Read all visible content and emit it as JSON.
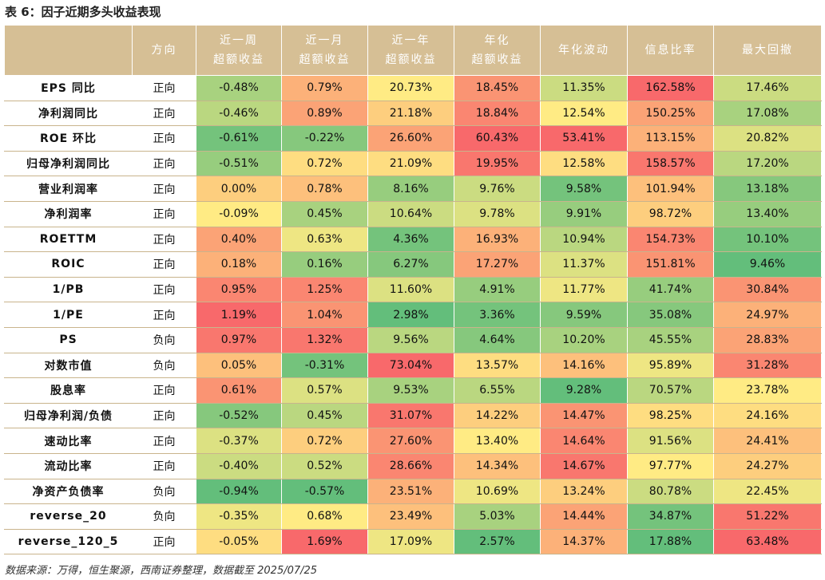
{
  "header": {
    "title": "表 6：因子近期多头收益表现"
  },
  "table": {
    "columns": [
      "方向",
      [
        "近一周",
        "超额收益"
      ],
      [
        "近一月",
        "超额收益"
      ],
      [
        "近一年",
        "超额收益"
      ],
      [
        "年化",
        "超额收益"
      ],
      "年化波动",
      "信息比率",
      "最大回撤"
    ],
    "rows": [
      [
        "EPS 同比",
        "正向",
        "-0.48%",
        "0.79%",
        "20.73%",
        "18.45%",
        "11.35%",
        "162.58%",
        "17.46%"
      ],
      [
        "净利润同比",
        "正向",
        "-0.46%",
        "0.89%",
        "21.18%",
        "18.84%",
        "12.54%",
        "150.25%",
        "17.08%"
      ],
      [
        "ROE 环比",
        "正向",
        "-0.61%",
        "-0.22%",
        "26.60%",
        "60.43%",
        "53.41%",
        "113.15%",
        "20.82%"
      ],
      [
        "归母净利润同比",
        "正向",
        "-0.51%",
        "0.72%",
        "21.09%",
        "19.95%",
        "12.58%",
        "158.57%",
        "17.20%"
      ],
      [
        "营业利润率",
        "正向",
        "0.00%",
        "0.78%",
        "8.16%",
        "9.76%",
        "9.58%",
        "101.94%",
        "13.18%"
      ],
      [
        "净利润率",
        "正向",
        "-0.09%",
        "0.45%",
        "10.64%",
        "9.78%",
        "9.91%",
        "98.72%",
        "13.40%"
      ],
      [
        "ROETTM",
        "正向",
        "0.40%",
        "0.63%",
        "4.36%",
        "16.93%",
        "10.94%",
        "154.73%",
        "10.10%"
      ],
      [
        "ROIC",
        "正向",
        "0.18%",
        "0.16%",
        "6.27%",
        "17.27%",
        "11.37%",
        "151.81%",
        "9.46%"
      ],
      [
        "1/PB",
        "正向",
        "0.95%",
        "1.25%",
        "11.60%",
        "4.91%",
        "11.77%",
        "41.74%",
        "30.84%"
      ],
      [
        "1/PE",
        "正向",
        "1.19%",
        "1.04%",
        "2.98%",
        "3.36%",
        "9.59%",
        "35.08%",
        "24.97%"
      ],
      [
        "PS",
        "负向",
        "0.97%",
        "1.32%",
        "9.56%",
        "4.64%",
        "10.20%",
        "45.55%",
        "28.83%"
      ],
      [
        "对数市值",
        "负向",
        "0.05%",
        "-0.31%",
        "73.04%",
        "13.57%",
        "14.16%",
        "95.89%",
        "31.28%"
      ],
      [
        "股息率",
        "正向",
        "0.61%",
        "0.57%",
        "9.53%",
        "6.55%",
        "9.28%",
        "70.57%",
        "23.78%"
      ],
      [
        "归母净利润/负债",
        "正向",
        "-0.52%",
        "0.45%",
        "31.07%",
        "14.22%",
        "14.47%",
        "98.25%",
        "24.16%"
      ],
      [
        "速动比率",
        "正向",
        "-0.37%",
        "0.72%",
        "27.60%",
        "13.40%",
        "14.64%",
        "91.56%",
        "24.41%"
      ],
      [
        "流动比率",
        "正向",
        "-0.40%",
        "0.52%",
        "28.66%",
        "14.34%",
        "14.67%",
        "97.77%",
        "24.27%"
      ],
      [
        "净资产负债率",
        "负向",
        "-0.94%",
        "-0.57%",
        "23.51%",
        "10.69%",
        "13.24%",
        "80.78%",
        "22.45%"
      ],
      [
        "reverse_20",
        "负向",
        "-0.35%",
        "0.68%",
        "23.49%",
        "5.03%",
        "14.44%",
        "34.87%",
        "51.22%"
      ],
      [
        "reverse_120_5",
        "正向",
        "-0.05%",
        "1.69%",
        "17.09%",
        "2.57%",
        "14.37%",
        "17.88%",
        "63.48%"
      ]
    ]
  },
  "footer": {
    "source": "数据来源：万得，恒生聚源，西南证券整理，数据截至 2025/07/25"
  }
}
